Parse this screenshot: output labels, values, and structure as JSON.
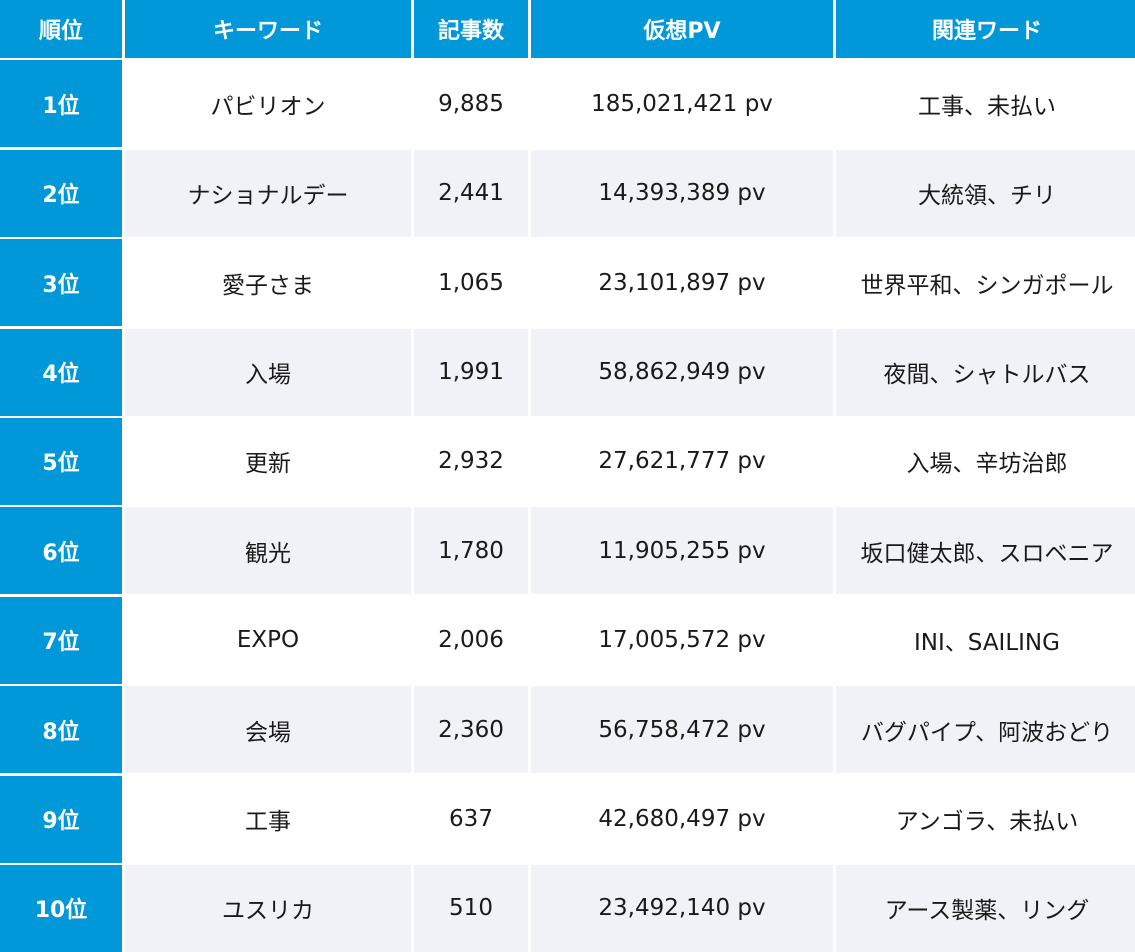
{
  "colors": {
    "header_bg": "#0098d8",
    "header_text": "#ffffff",
    "row_alt_bg": "#f1f2f7",
    "row_bg": "#ffffff"
  },
  "chart_data": {
    "type": "table",
    "columns": [
      "順位",
      "キーワード",
      "記事数",
      "仮想PV",
      "関連ワード"
    ],
    "rows": [
      [
        "1位",
        "パビリオン",
        "9,885",
        "185,021,421 pv",
        "工事、未払い"
      ],
      [
        "2位",
        "ナショナルデー",
        "2,441",
        "14,393,389 pv",
        "大統領、チリ"
      ],
      [
        "3位",
        "愛子さま",
        "1,065",
        "23,101,897 pv",
        "世界平和、シンガポール"
      ],
      [
        "4位",
        "入場",
        "1,991",
        "58,862,949 pv",
        "夜間、シャトルバス"
      ],
      [
        "5位",
        "更新",
        "2,932",
        "27,621,777 pv",
        "入場、辛坊治郎"
      ],
      [
        "6位",
        "観光",
        "1,780",
        "11,905,255 pv",
        "坂口健太郎、スロベニア"
      ],
      [
        "7位",
        "EXPO",
        "2,006",
        "17,005,572 pv",
        "INI、SAILING"
      ],
      [
        "8位",
        "会場",
        "2,360",
        "56,758,472 pv",
        "バグパイプ、阿波おどり"
      ],
      [
        "9位",
        "工事",
        "637",
        "42,680,497 pv",
        "アンゴラ、未払い"
      ],
      [
        "10位",
        "ユスリカ",
        "510",
        "23,492,140 pv",
        "アース製薬、リング"
      ]
    ]
  }
}
